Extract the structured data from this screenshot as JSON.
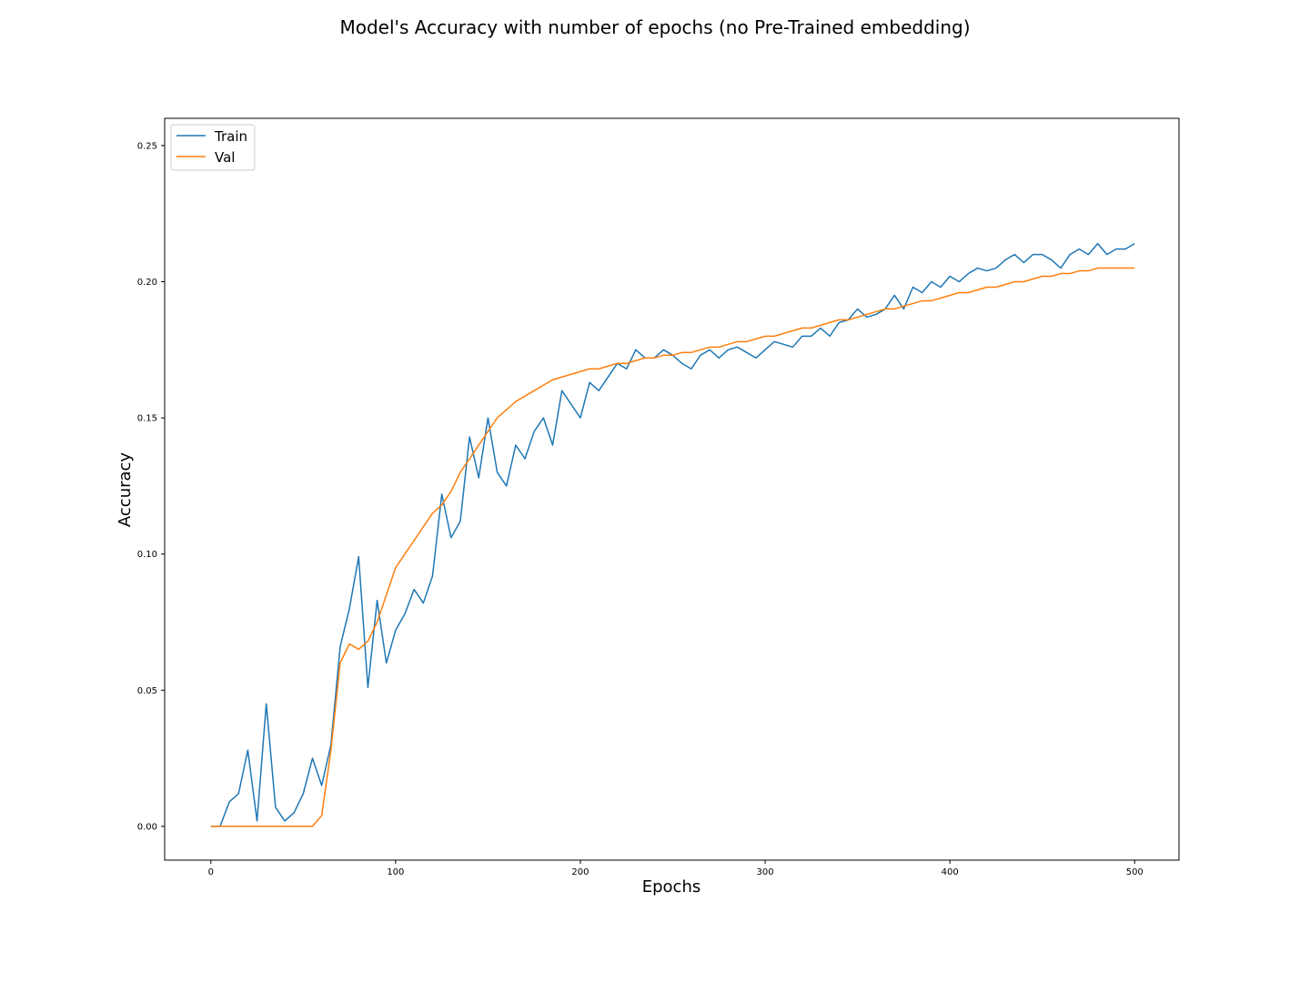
{
  "chart_data": {
    "type": "line",
    "title": "Model's Accuracy with number of epochs (no Pre-Trained embedding)",
    "xlabel": "Epochs",
    "ylabel": "Accuracy",
    "xlim": [
      -25,
      524
    ],
    "ylim": [
      -0.0124,
      0.26
    ],
    "xticks": [
      0,
      100,
      200,
      300,
      400,
      500
    ],
    "xtick_labels": [
      "0",
      "100",
      "200",
      "300",
      "400",
      "500"
    ],
    "yticks": [
      0.0,
      0.05,
      0.1,
      0.15,
      0.2,
      0.25
    ],
    "ytick_labels": [
      "0.00",
      "0.05",
      "0.10",
      "0.15",
      "0.20",
      "0.25"
    ],
    "grid": false,
    "legend_position": "upper-left",
    "series": [
      {
        "name": "Train",
        "color": "#1f77b4",
        "x_start": 0,
        "x_step": 5,
        "values": [
          0.0,
          0.0,
          0.009,
          0.012,
          0.028,
          0.002,
          0.045,
          0.007,
          0.002,
          0.005,
          0.012,
          0.025,
          0.015,
          0.03,
          0.066,
          0.08,
          0.099,
          0.051,
          0.083,
          0.06,
          0.072,
          0.078,
          0.087,
          0.082,
          0.092,
          0.122,
          0.106,
          0.112,
          0.143,
          0.128,
          0.15,
          0.13,
          0.125,
          0.14,
          0.135,
          0.145,
          0.15,
          0.14,
          0.16,
          0.155,
          0.15,
          0.163,
          0.16,
          0.165,
          0.17,
          0.168,
          0.175,
          0.172,
          0.172,
          0.175,
          0.173,
          0.17,
          0.168,
          0.173,
          0.175,
          0.172,
          0.175,
          0.176,
          0.174,
          0.172,
          0.175,
          0.178,
          0.177,
          0.176,
          0.18,
          0.18,
          0.183,
          0.18,
          0.185,
          0.186,
          0.19,
          0.187,
          0.188,
          0.19,
          0.195,
          0.19,
          0.198,
          0.196,
          0.2,
          0.198,
          0.202,
          0.2,
          0.203,
          0.205,
          0.204,
          0.205,
          0.208,
          0.21,
          0.207,
          0.21,
          0.21,
          0.208,
          0.205,
          0.21,
          0.212,
          0.21,
          0.214,
          0.21,
          0.212,
          0.212,
          0.214
        ]
      },
      {
        "name": "Val",
        "color": "#ff7f0e",
        "x_start": 0,
        "x_step": 5,
        "values": [
          0.0,
          0.0,
          0.0,
          0.0,
          0.0,
          0.0,
          0.0,
          0.0,
          0.0,
          0.0,
          0.0,
          0.0,
          0.004,
          0.028,
          0.06,
          0.067,
          0.065,
          0.068,
          0.075,
          0.085,
          0.095,
          0.1,
          0.105,
          0.11,
          0.115,
          0.118,
          0.123,
          0.13,
          0.135,
          0.14,
          0.145,
          0.15,
          0.153,
          0.156,
          0.158,
          0.16,
          0.162,
          0.164,
          0.165,
          0.166,
          0.167,
          0.168,
          0.168,
          0.169,
          0.17,
          0.17,
          0.171,
          0.172,
          0.172,
          0.173,
          0.173,
          0.174,
          0.174,
          0.175,
          0.176,
          0.176,
          0.177,
          0.178,
          0.178,
          0.179,
          0.18,
          0.18,
          0.181,
          0.182,
          0.183,
          0.183,
          0.184,
          0.185,
          0.186,
          0.186,
          0.187,
          0.188,
          0.189,
          0.19,
          0.19,
          0.191,
          0.192,
          0.193,
          0.193,
          0.194,
          0.195,
          0.196,
          0.196,
          0.197,
          0.198,
          0.198,
          0.199,
          0.2,
          0.2,
          0.201,
          0.202,
          0.202,
          0.203,
          0.203,
          0.204,
          0.204,
          0.205,
          0.205,
          0.205,
          0.205,
          0.205
        ]
      }
    ]
  }
}
